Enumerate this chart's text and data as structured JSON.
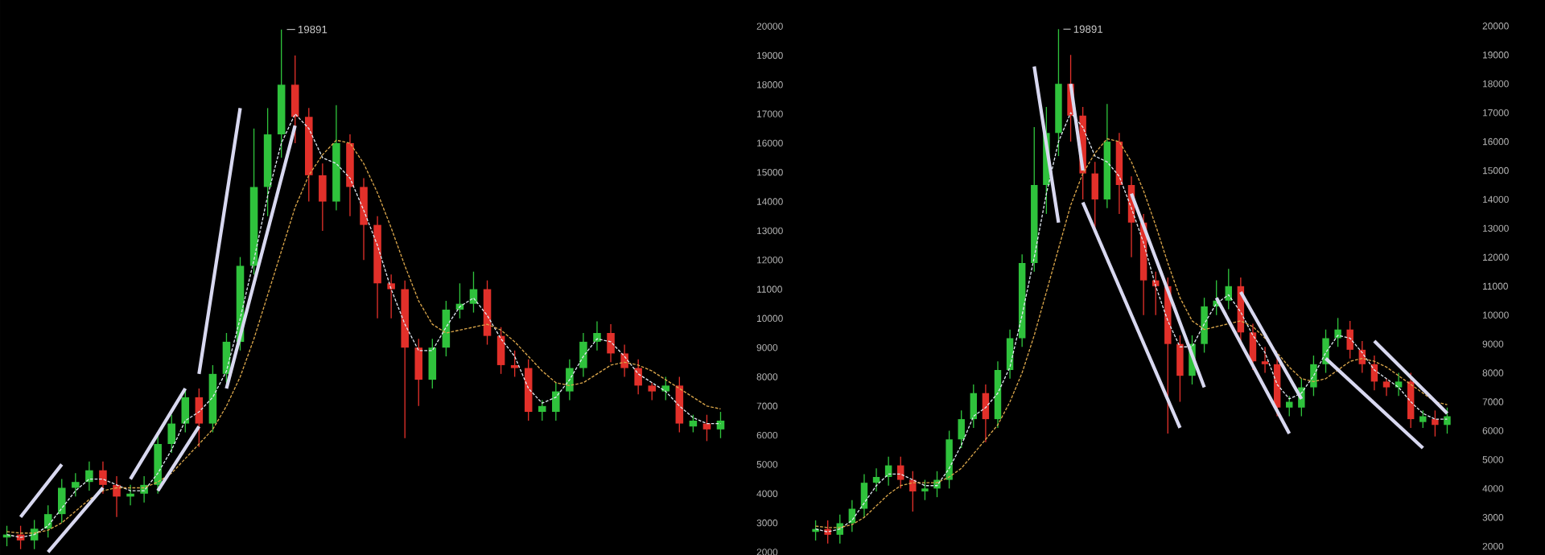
{
  "chart_data": [
    {
      "type": "candlestick",
      "categories": [
        null,
        null,
        null,
        null,
        null,
        null,
        null,
        null,
        null,
        null,
        null,
        null,
        null,
        null,
        null,
        null,
        null,
        null,
        null,
        null,
        null,
        null,
        null,
        null,
        null,
        null,
        null,
        null,
        null,
        null,
        null,
        null,
        null,
        null,
        null,
        null,
        null,
        null,
        null,
        null,
        null,
        null,
        null,
        null,
        null,
        null,
        null,
        null,
        null,
        null,
        null,
        null,
        null
      ],
      "ohlc": [
        [
          2500,
          2900,
          2200,
          2600
        ],
        [
          2600,
          2900,
          2100,
          2400
        ],
        [
          2400,
          3100,
          2100,
          2800
        ],
        [
          2800,
          3600,
          2500,
          3300
        ],
        [
          3300,
          4500,
          3000,
          4200
        ],
        [
          4200,
          4700,
          3900,
          4400
        ],
        [
          4400,
          5100,
          4100,
          4800
        ],
        [
          4800,
          5100,
          4000,
          4300
        ],
        [
          4300,
          4600,
          3200,
          3900
        ],
        [
          3900,
          4300,
          3600,
          4000
        ],
        [
          4000,
          4600,
          3700,
          4300
        ],
        [
          4300,
          6000,
          4000,
          5700
        ],
        [
          5700,
          6700,
          5400,
          6400
        ],
        [
          6400,
          7600,
          6100,
          7300
        ],
        [
          7300,
          7600,
          5600,
          6400
        ],
        [
          6400,
          8400,
          6100,
          8100
        ],
        [
          8100,
          9500,
          7800,
          9200
        ],
        [
          9200,
          12100,
          8900,
          11800
        ],
        [
          11800,
          16500,
          11500,
          14500
        ],
        [
          14500,
          17200,
          13500,
          16300
        ],
        [
          16300,
          19891,
          15500,
          18000
        ],
        [
          18000,
          19000,
          16000,
          16900
        ],
        [
          16900,
          17200,
          14000,
          14900
        ],
        [
          14900,
          15300,
          13000,
          14000
        ],
        [
          14000,
          17300,
          13700,
          16000
        ],
        [
          16000,
          16300,
          13500,
          14500
        ],
        [
          14500,
          14800,
          12000,
          13200
        ],
        [
          13200,
          13500,
          10000,
          11200
        ],
        [
          11200,
          11500,
          10000,
          11000
        ],
        [
          11000,
          11300,
          5900,
          9000
        ],
        [
          9000,
          9300,
          7000,
          7900
        ],
        [
          7900,
          9300,
          7600,
          9000
        ],
        [
          9000,
          10600,
          8700,
          10300
        ],
        [
          10300,
          11200,
          10000,
          10500
        ],
        [
          10500,
          11600,
          10200,
          11000
        ],
        [
          11000,
          11300,
          9100,
          9400
        ],
        [
          9400,
          9700,
          8100,
          8400
        ],
        [
          8400,
          8900,
          8000,
          8300
        ],
        [
          8300,
          8600,
          6500,
          6800
        ],
        [
          6800,
          7200,
          6500,
          7000
        ],
        [
          6800,
          7800,
          6500,
          7500
        ],
        [
          7500,
          8600,
          7200,
          8300
        ],
        [
          8300,
          9500,
          8000,
          9200
        ],
        [
          9200,
          9900,
          8900,
          9500
        ],
        [
          9500,
          9800,
          8500,
          8800
        ],
        [
          8800,
          9100,
          8000,
          8300
        ],
        [
          8300,
          8600,
          7400,
          7700
        ],
        [
          7700,
          7800,
          7200,
          7500
        ],
        [
          7500,
          8000,
          7200,
          7700
        ],
        [
          7700,
          8000,
          6100,
          6400
        ],
        [
          6300,
          6700,
          6100,
          6500
        ],
        [
          6400,
          6700,
          5800,
          6200
        ],
        [
          6200,
          6800,
          5900,
          6500
        ]
      ],
      "colors": [
        "#2fc23c",
        "#e2302a",
        "#2fc23c",
        "#2fc23c",
        "#2fc23c",
        "#2fc23c",
        "#2fc23c",
        "#e2302a",
        "#e2302a",
        "#2fc23c",
        "#2fc23c",
        "#2fc23c",
        "#2fc23c",
        "#2fc23c",
        "#e2302a",
        "#2fc23c",
        "#2fc23c",
        "#2fc23c",
        "#2fc23c",
        "#2fc23c",
        "#2fc23c",
        "#e2302a",
        "#e2302a",
        "#e2302a",
        "#2fc23c",
        "#e2302a",
        "#e2302a",
        "#e2302a",
        "#e2302a",
        "#e2302a",
        "#e2302a",
        "#2fc23c",
        "#2fc23c",
        "#2fc23c",
        "#2fc23c",
        "#e2302a",
        "#e2302a",
        "#e2302a",
        "#e2302a",
        "#2fc23c",
        "#2fc23c",
        "#2fc23c",
        "#2fc23c",
        "#2fc23c",
        "#e2302a",
        "#e2302a",
        "#e2302a",
        "#e2302a",
        "#2fc23c",
        "#e2302a",
        "#2fc23c",
        "#e2302a",
        "#2fc23c"
      ],
      "series": [
        {
          "type": "line",
          "color": "#dfe7f0",
          "line_style": "dashed",
          "values": [
            2600,
            2500,
            2600,
            2900,
            3500,
            4100,
            4500,
            4500,
            4300,
            4100,
            4100,
            4700,
            5500,
            6500,
            6800,
            7300,
            8200,
            10000,
            12000,
            14200,
            16000,
            17000,
            16500,
            15500,
            15300,
            14800,
            13700,
            12500,
            11000,
            9800,
            8900,
            8900,
            9700,
            10400,
            10700,
            10100,
            9300,
            8700,
            7600,
            7100,
            7300,
            7900,
            8700,
            9300,
            9200,
            8700,
            8100,
            7800,
            7500,
            7000,
            6600,
            6400,
            6400
          ]
        },
        {
          "type": "line",
          "color": "#d9a54a",
          "line_style": "dashed",
          "values": [
            2700,
            2650,
            2650,
            2750,
            3000,
            3400,
            3800,
            4100,
            4200,
            4200,
            4200,
            4400,
            4700,
            5200,
            5700,
            6200,
            7000,
            8000,
            9300,
            10800,
            12300,
            13800,
            14900,
            15600,
            16100,
            16000,
            15300,
            14300,
            13100,
            11800,
            10600,
            9800,
            9500,
            9600,
            9700,
            9800,
            9600,
            9200,
            8700,
            8200,
            7800,
            7700,
            7800,
            8100,
            8400,
            8500,
            8400,
            8200,
            7900,
            7600,
            7300,
            7000,
            6900
          ]
        },
        {
          "type": "line",
          "color": "#d8d8f0",
          "line_style": "solid",
          "values": [
            null,
            3200,
            null,
            null,
            5000,
            null,
            null,
            null,
            null,
            null,
            null,
            null,
            null,
            null,
            null,
            null,
            null,
            null,
            null,
            null,
            null,
            null,
            null,
            null,
            null,
            null,
            null,
            null,
            null,
            null,
            null,
            null,
            null,
            null,
            null,
            null,
            null,
            null,
            null,
            null,
            null,
            null,
            null,
            null,
            null,
            null,
            null,
            null,
            null,
            null,
            null,
            null,
            null
          ]
        },
        {
          "type": "line",
          "color": "#d8d8f0",
          "line_style": "solid",
          "values": [
            null,
            null,
            null,
            2000,
            null,
            null,
            null,
            4200,
            null,
            null,
            null,
            null,
            null,
            null,
            null,
            null,
            null,
            null,
            null,
            null,
            null,
            null,
            null,
            null,
            null,
            null,
            null,
            null,
            null,
            null,
            null,
            null,
            null,
            null,
            null,
            null,
            null,
            null,
            null,
            null,
            null,
            null,
            null,
            null,
            null,
            null,
            null,
            null,
            null,
            null,
            null,
            null,
            null
          ]
        },
        {
          "type": "line",
          "color": "#d8d8f0",
          "line_style": "solid",
          "values": [
            null,
            null,
            null,
            null,
            null,
            null,
            null,
            null,
            null,
            4500,
            null,
            null,
            null,
            7600,
            null,
            null,
            null,
            null,
            null,
            null,
            null,
            null,
            null,
            null,
            null,
            null,
            null,
            null,
            null,
            null,
            null,
            null,
            null,
            null,
            null,
            null,
            null,
            null,
            null,
            null,
            null,
            null,
            null,
            null,
            null,
            null,
            null,
            null,
            null,
            null,
            null,
            null,
            null
          ]
        },
        {
          "type": "line",
          "color": "#d8d8f0",
          "line_style": "solid",
          "values": [
            null,
            null,
            null,
            null,
            null,
            null,
            null,
            null,
            null,
            null,
            null,
            4100,
            null,
            null,
            6300,
            null,
            null,
            null,
            null,
            null,
            null,
            null,
            null,
            null,
            null,
            null,
            null,
            null,
            null,
            null,
            null,
            null,
            null,
            null,
            null,
            null,
            null,
            null,
            null,
            null,
            null,
            null,
            null,
            null,
            null,
            null,
            null,
            null,
            null,
            null,
            null,
            null,
            null
          ]
        },
        {
          "type": "line",
          "color": "#d8d8f0",
          "line_style": "solid",
          "values": [
            null,
            null,
            null,
            null,
            null,
            null,
            null,
            null,
            null,
            null,
            null,
            null,
            null,
            null,
            8100,
            null,
            null,
            17200,
            null,
            null,
            null,
            null,
            null,
            null,
            null,
            null,
            null,
            null,
            null,
            null,
            null,
            null,
            null,
            null,
            null,
            null,
            null,
            null,
            null,
            null,
            null,
            null,
            null,
            null,
            null,
            null,
            null,
            null,
            null,
            null,
            null,
            null,
            null
          ]
        },
        {
          "type": "line",
          "color": "#d8d8f0",
          "line_style": "solid",
          "values": [
            null,
            null,
            null,
            null,
            null,
            null,
            null,
            null,
            null,
            null,
            null,
            null,
            null,
            null,
            null,
            null,
            7600,
            null,
            null,
            null,
            null,
            16600,
            null,
            null,
            null,
            null,
            null,
            null,
            null,
            null,
            null,
            null,
            null,
            null,
            null,
            null,
            null,
            null,
            null,
            null,
            null,
            null,
            null,
            null,
            null,
            null,
            null,
            null,
            null,
            null,
            null,
            null,
            null
          ]
        }
      ],
      "ylim": [
        1900,
        20900
      ],
      "yticks": [
        2000,
        3000,
        4000,
        5000,
        6000,
        7000,
        8000,
        9000,
        10000,
        11000,
        12000,
        13000,
        14000,
        15000,
        16000,
        17000,
        18000,
        19000,
        20000
      ],
      "tick_labels": "y",
      "marker": "none",
      "annotations": [
        "19891"
      ]
    },
    {
      "type": "candlestick",
      "categories": [
        null,
        null,
        null,
        null,
        null,
        null,
        null,
        null,
        null,
        null,
        null,
        null,
        null,
        null,
        null,
        null,
        null,
        null,
        null,
        null,
        null,
        null,
        null,
        null,
        null,
        null,
        null,
        null,
        null,
        null,
        null,
        null,
        null,
        null,
        null,
        null,
        null,
        null,
        null,
        null,
        null,
        null,
        null,
        null,
        null,
        null,
        null,
        null,
        null,
        null,
        null,
        null,
        null
      ],
      "ohlc": [
        [
          2500,
          2900,
          2200,
          2600
        ],
        [
          2600,
          2900,
          2100,
          2400
        ],
        [
          2400,
          3100,
          2100,
          2800
        ],
        [
          2800,
          3600,
          2500,
          3300
        ],
        [
          3300,
          4500,
          3000,
          4200
        ],
        [
          4200,
          4700,
          3900,
          4400
        ],
        [
          4400,
          5100,
          4100,
          4800
        ],
        [
          4800,
          5100,
          4000,
          4300
        ],
        [
          4300,
          4600,
          3200,
          3900
        ],
        [
          3900,
          4300,
          3600,
          4000
        ],
        [
          4000,
          4600,
          3700,
          4300
        ],
        [
          4300,
          6000,
          4000,
          5700
        ],
        [
          5700,
          6700,
          5400,
          6400
        ],
        [
          6400,
          7600,
          6100,
          7300
        ],
        [
          7300,
          7600,
          5600,
          6400
        ],
        [
          6400,
          8400,
          6100,
          8100
        ],
        [
          8100,
          9500,
          7800,
          9200
        ],
        [
          9200,
          12100,
          8900,
          11800
        ],
        [
          11800,
          16500,
          11500,
          14500
        ],
        [
          14500,
          17200,
          13500,
          16300
        ],
        [
          16300,
          19891,
          15500,
          18000
        ],
        [
          18000,
          19000,
          16000,
          16900
        ],
        [
          16900,
          17200,
          14000,
          14900
        ],
        [
          14900,
          15300,
          13000,
          14000
        ],
        [
          14000,
          17300,
          13700,
          16000
        ],
        [
          16000,
          16300,
          13500,
          14500
        ],
        [
          14500,
          14800,
          12000,
          13200
        ],
        [
          13200,
          13500,
          10000,
          11200
        ],
        [
          11200,
          11500,
          10000,
          11000
        ],
        [
          11000,
          11300,
          5900,
          9000
        ],
        [
          9000,
          9300,
          7000,
          7900
        ],
        [
          7900,
          9300,
          7600,
          9000
        ],
        [
          9000,
          10600,
          8700,
          10300
        ],
        [
          10300,
          11200,
          10000,
          10500
        ],
        [
          10500,
          11600,
          10200,
          11000
        ],
        [
          11000,
          11300,
          9100,
          9400
        ],
        [
          9400,
          9700,
          8100,
          8400
        ],
        [
          8400,
          8900,
          8000,
          8300
        ],
        [
          8300,
          8600,
          6500,
          6800
        ],
        [
          6800,
          7200,
          6500,
          7000
        ],
        [
          6800,
          7800,
          6500,
          7500
        ],
        [
          7500,
          8600,
          7200,
          8300
        ],
        [
          8300,
          9500,
          8000,
          9200
        ],
        [
          9200,
          9900,
          8900,
          9500
        ],
        [
          9500,
          9800,
          8500,
          8800
        ],
        [
          8800,
          9100,
          8000,
          8300
        ],
        [
          8300,
          8600,
          7400,
          7700
        ],
        [
          7700,
          7800,
          7200,
          7500
        ],
        [
          7500,
          8000,
          7200,
          7700
        ],
        [
          7700,
          8000,
          6100,
          6400
        ],
        [
          6300,
          6700,
          6100,
          6500
        ],
        [
          6400,
          6700,
          5800,
          6200
        ],
        [
          6200,
          6800,
          5900,
          6500
        ]
      ],
      "colors": [
        "#2fc23c",
        "#e2302a",
        "#2fc23c",
        "#2fc23c",
        "#2fc23c",
        "#2fc23c",
        "#2fc23c",
        "#e2302a",
        "#e2302a",
        "#2fc23c",
        "#2fc23c",
        "#2fc23c",
        "#2fc23c",
        "#2fc23c",
        "#e2302a",
        "#2fc23c",
        "#2fc23c",
        "#2fc23c",
        "#2fc23c",
        "#2fc23c",
        "#2fc23c",
        "#e2302a",
        "#e2302a",
        "#e2302a",
        "#2fc23c",
        "#e2302a",
        "#e2302a",
        "#e2302a",
        "#e2302a",
        "#e2302a",
        "#e2302a",
        "#2fc23c",
        "#2fc23c",
        "#2fc23c",
        "#2fc23c",
        "#e2302a",
        "#e2302a",
        "#e2302a",
        "#e2302a",
        "#2fc23c",
        "#2fc23c",
        "#2fc23c",
        "#2fc23c",
        "#2fc23c",
        "#e2302a",
        "#e2302a",
        "#e2302a",
        "#e2302a",
        "#2fc23c",
        "#e2302a",
        "#2fc23c",
        "#e2302a",
        "#2fc23c"
      ],
      "series": [
        {
          "type": "line",
          "color": "#dfe7f0",
          "line_style": "dashed",
          "values": [
            2600,
            2500,
            2600,
            2900,
            3500,
            4100,
            4500,
            4500,
            4300,
            4100,
            4100,
            4700,
            5500,
            6500,
            6800,
            7300,
            8200,
            10000,
            12000,
            14200,
            16000,
            17000,
            16500,
            15500,
            15300,
            14800,
            13700,
            12500,
            11000,
            9800,
            8900,
            8900,
            9700,
            10400,
            10700,
            10100,
            9300,
            8700,
            7600,
            7100,
            7300,
            7900,
            8700,
            9300,
            9200,
            8700,
            8100,
            7800,
            7500,
            7000,
            6600,
            6400,
            6400
          ]
        },
        {
          "type": "line",
          "color": "#d9a54a",
          "line_style": "dashed",
          "values": [
            2700,
            2650,
            2650,
            2750,
            3000,
            3400,
            3800,
            4100,
            4200,
            4200,
            4200,
            4400,
            4700,
            5200,
            5700,
            6200,
            7000,
            8000,
            9300,
            10800,
            12300,
            13800,
            14900,
            15600,
            16100,
            16000,
            15300,
            14300,
            13100,
            11800,
            10600,
            9800,
            9500,
            9600,
            9700,
            9800,
            9600,
            9200,
            8700,
            8200,
            7800,
            7700,
            7800,
            8100,
            8400,
            8500,
            8400,
            8200,
            7900,
            7600,
            7300,
            7000,
            6900
          ]
        },
        {
          "type": "line",
          "color": "#d8d8f0",
          "line_style": "solid",
          "values": [
            null,
            null,
            null,
            null,
            null,
            null,
            null,
            null,
            null,
            null,
            null,
            null,
            null,
            null,
            null,
            null,
            null,
            null,
            18600,
            null,
            13200,
            null,
            null,
            null,
            null,
            null,
            null,
            null,
            null,
            null,
            null,
            null,
            null,
            null,
            null,
            null,
            null,
            null,
            null,
            null,
            null,
            null,
            null,
            null,
            null,
            null,
            null,
            null,
            null,
            null,
            null,
            null,
            null
          ]
        },
        {
          "type": "line",
          "color": "#d8d8f0",
          "line_style": "solid",
          "values": [
            null,
            null,
            null,
            null,
            null,
            null,
            null,
            null,
            null,
            null,
            null,
            null,
            null,
            null,
            null,
            null,
            null,
            null,
            null,
            null,
            null,
            18000,
            15000,
            null,
            null,
            null,
            null,
            null,
            null,
            null,
            null,
            null,
            null,
            null,
            null,
            null,
            null,
            null,
            null,
            null,
            null,
            null,
            null,
            null,
            null,
            null,
            null,
            null,
            null,
            null,
            null,
            null,
            null
          ]
        },
        {
          "type": "line",
          "color": "#d8d8f0",
          "line_style": "solid",
          "values": [
            null,
            null,
            null,
            null,
            null,
            null,
            null,
            null,
            null,
            null,
            null,
            null,
            null,
            null,
            null,
            null,
            null,
            null,
            null,
            null,
            null,
            null,
            13900,
            null,
            null,
            null,
            null,
            null,
            null,
            null,
            6100,
            null,
            null,
            null,
            null,
            null,
            null,
            null,
            null,
            null,
            null,
            null,
            null,
            null,
            null,
            null,
            null,
            null,
            null,
            null,
            null,
            null,
            null
          ]
        },
        {
          "type": "line",
          "color": "#d8d8f0",
          "line_style": "solid",
          "values": [
            null,
            null,
            null,
            null,
            null,
            null,
            null,
            null,
            null,
            null,
            null,
            null,
            null,
            null,
            null,
            null,
            null,
            null,
            null,
            null,
            null,
            null,
            null,
            null,
            null,
            null,
            14200,
            null,
            null,
            null,
            null,
            null,
            7500,
            null,
            null,
            null,
            null,
            null,
            null,
            null,
            null,
            null,
            null,
            null,
            null,
            null,
            null,
            null,
            null,
            null,
            null,
            null,
            null
          ]
        },
        {
          "type": "line",
          "color": "#d8d8f0",
          "line_style": "solid",
          "values": [
            null,
            null,
            null,
            null,
            null,
            null,
            null,
            null,
            null,
            null,
            null,
            null,
            null,
            null,
            null,
            null,
            null,
            null,
            null,
            null,
            null,
            null,
            null,
            null,
            null,
            null,
            null,
            null,
            null,
            null,
            null,
            null,
            null,
            10600,
            null,
            null,
            null,
            null,
            null,
            5900,
            null,
            null,
            null,
            null,
            null,
            null,
            null,
            null,
            null,
            null,
            null,
            null,
            null
          ]
        },
        {
          "type": "line",
          "color": "#d8d8f0",
          "line_style": "solid",
          "values": [
            null,
            null,
            null,
            null,
            null,
            null,
            null,
            null,
            null,
            null,
            null,
            null,
            null,
            null,
            null,
            null,
            null,
            null,
            null,
            null,
            null,
            null,
            null,
            null,
            null,
            null,
            null,
            null,
            null,
            null,
            null,
            null,
            null,
            null,
            null,
            10800,
            null,
            null,
            null,
            null,
            7100,
            null,
            null,
            null,
            null,
            null,
            null,
            null,
            null,
            null,
            null,
            null,
            null
          ]
        },
        {
          "type": "line",
          "color": "#d8d8f0",
          "line_style": "solid",
          "values": [
            null,
            null,
            null,
            null,
            null,
            null,
            null,
            null,
            null,
            null,
            null,
            null,
            null,
            null,
            null,
            null,
            null,
            null,
            null,
            null,
            null,
            null,
            null,
            null,
            null,
            null,
            null,
            null,
            null,
            null,
            null,
            null,
            null,
            null,
            null,
            null,
            null,
            null,
            null,
            null,
            null,
            null,
            8500,
            null,
            null,
            null,
            null,
            null,
            null,
            null,
            5400,
            null,
            null
          ]
        },
        {
          "type": "line",
          "color": "#d8d8f0",
          "line_style": "solid",
          "values": [
            null,
            null,
            null,
            null,
            null,
            null,
            null,
            null,
            null,
            null,
            null,
            null,
            null,
            null,
            null,
            null,
            null,
            null,
            null,
            null,
            null,
            null,
            null,
            null,
            null,
            null,
            null,
            null,
            null,
            null,
            null,
            null,
            null,
            null,
            null,
            null,
            null,
            null,
            null,
            null,
            null,
            null,
            null,
            null,
            null,
            null,
            9100,
            null,
            null,
            null,
            null,
            null,
            6600
          ]
        }
      ],
      "ylim": [
        1700,
        20900
      ],
      "yticks": [
        2000,
        3000,
        4000,
        5000,
        6000,
        7000,
        8000,
        9000,
        10000,
        11000,
        12000,
        13000,
        14000,
        15000,
        16000,
        17000,
        18000,
        19000,
        20000
      ],
      "tick_labels": "y",
      "marker": "none",
      "annotations": [
        "19891"
      ]
    }
  ]
}
